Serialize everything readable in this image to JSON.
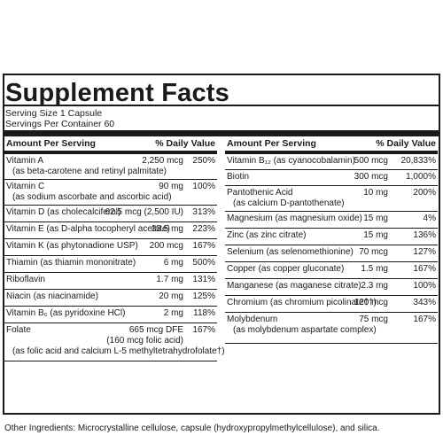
{
  "title": "Supplement Facts",
  "serving_size": "Serving Size 1 Capsule",
  "servings_per_container": "Servings Per Container 60",
  "left_table": {
    "header_amount": "Amount Per Serving",
    "header_dv": "% Daily Value",
    "rows": [
      {
        "name": "Vitamin A",
        "sub": "(as beta-carotene and retinyl palmitate)",
        "amount": "2,250 mcg",
        "dv": "250%"
      },
      {
        "name": "Vitamin C",
        "sub": "(as sodium ascorbate and ascorbic acid)",
        "amount": "90 mg",
        "dv": "100%"
      },
      {
        "name": "Vitamin D (as cholecalciferol)",
        "amount": "62.5 mcg (2,500 IU)",
        "dv": "313%"
      },
      {
        "name": "Vitamin E (as D-alpha tocopheryl acetate)",
        "amount": "33.5 mg",
        "dv": "223%"
      },
      {
        "name": "Vitamin K (as phytonadione USP)",
        "amount": "200 mcg",
        "dv": "167%"
      },
      {
        "name": "Thiamin (as thiamin mononitrate)",
        "amount": "6 mg",
        "dv": "500%"
      },
      {
        "name": "Riboflavin",
        "amount": "1.7 mg",
        "dv": "131%"
      },
      {
        "name": "Niacin (as niacinamide)",
        "amount": "20 mg",
        "dv": "125%"
      },
      {
        "name": "Vitamin B₆ (as pyridoxine HCl)",
        "amount": "2 mg",
        "dv": "118%"
      },
      {
        "name": "Folate",
        "amount": "665 mcg DFE",
        "amount_sub": "(160 mcg folic acid)",
        "sub3": "(as folic acid and calcium L-5 methyltetrahydrofolate†)",
        "dv": "167%"
      }
    ]
  },
  "right_table": {
    "header_amount": "Amount Per Serving",
    "header_dv": "% Daily Value",
    "rows": [
      {
        "name": "Vitamin B₁₂ (as cyanocobalamin)",
        "amount": "500 mcg",
        "dv": "20,833%"
      },
      {
        "name": "Biotin",
        "amount": "300 mcg",
        "dv": "1,000%"
      },
      {
        "name": "Pantothenic Acid",
        "sub": "(as calcium D-pantothenate)",
        "amount": "10 mg",
        "dv": "200%"
      },
      {
        "name": "Magnesium (as magnesium oxide)",
        "amount": "15 mg",
        "dv": "4%"
      },
      {
        "name": "Zinc (as zinc citrate)",
        "amount": "15 mg",
        "dv": "136%"
      },
      {
        "name": "Selenium (as selenomethionine)",
        "amount": "70 mcg",
        "dv": "127%"
      },
      {
        "name": "Copper (as copper gluconate)",
        "amount": "1.5 mg",
        "dv": "167%"
      },
      {
        "name": "Manganese (as maganese citrate)",
        "amount": "2.3 mg",
        "dv": "100%"
      },
      {
        "name": "Chromium (as chromium picolinate††)",
        "amount": "120 mcg",
        "dv": "343%"
      },
      {
        "name": "Molybdenum",
        "sub": "(as molybdenum aspartate complex)",
        "amount": "75 mcg",
        "dv": "167%"
      }
    ]
  },
  "other_ingredients": "Other Ingredients: Microcrystalline cellulose, capsule (hydroxypropylmethylcellulose), and silica."
}
